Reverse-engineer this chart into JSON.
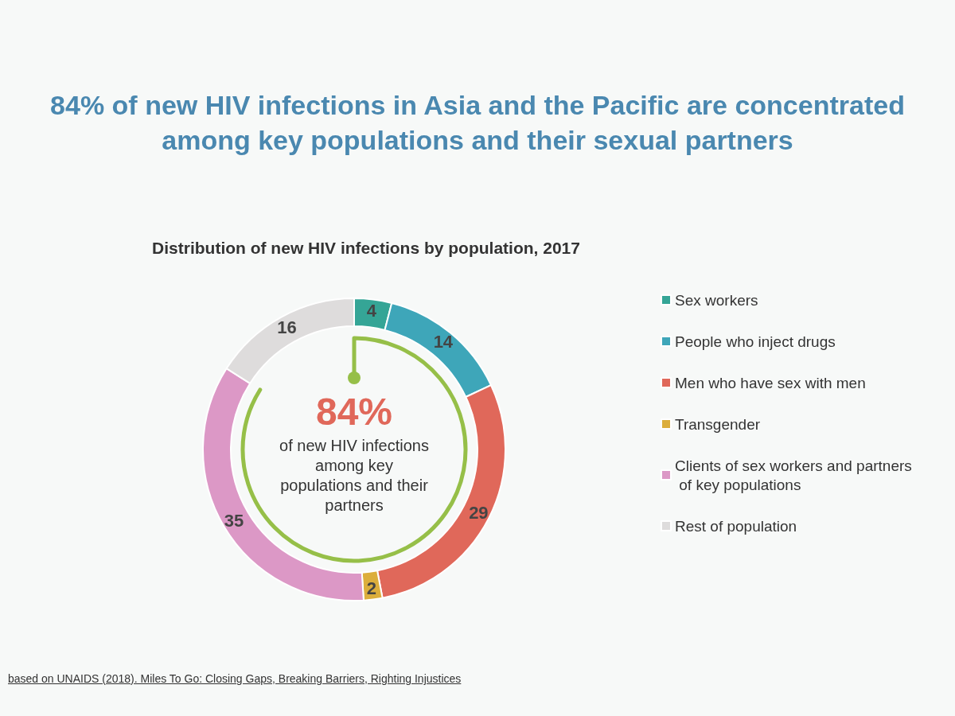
{
  "chart_data": {
    "type": "donut",
    "title": "84% of new HIV infections in Asia and the Pacific are concentrated among key populations and their sexual partners",
    "subtitle": "Distribution of new HIV infections by population, 2017",
    "categories": [
      "Sex workers",
      "People who inject drugs",
      "Men who have sex with men",
      "Transgender",
      "Clients of sex workers and partners of key populations",
      "Rest of population"
    ],
    "values": [
      4,
      14,
      29,
      2,
      35,
      16
    ],
    "colors": [
      "#35a596",
      "#3ea6b9",
      "#e0685a",
      "#dcae3c",
      "#dc98c6",
      "#dedcdc"
    ],
    "data_labels": true,
    "legend": "right",
    "annotations": [
      "84%",
      "of new HIV infections among key populations and their partners",
      "based on UNAIDS (2018). Miles To Go: Closing Gaps, Breaking Barriers, Righting Injustices"
    ]
  }
}
